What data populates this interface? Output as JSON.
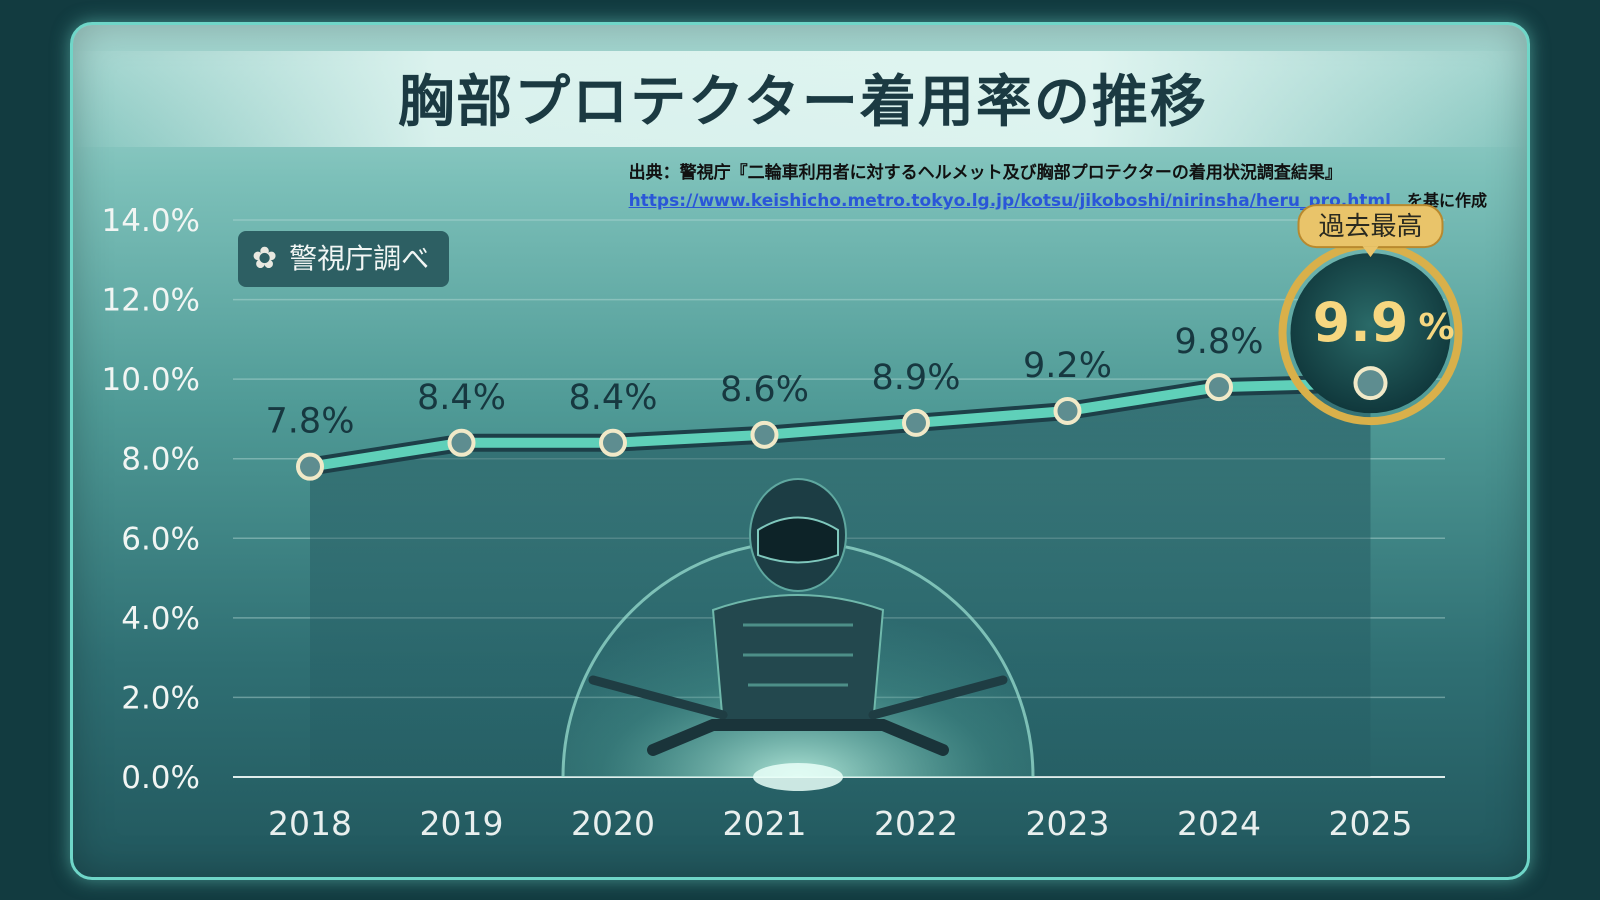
{
  "title": "胸部プロテクター着用率の推移",
  "source": {
    "line1": "出典：警視庁『二輪車利用者に対するヘルメット及び胸部プロテクターの着用状況調査結果』",
    "url": "https://www.keishicho.metro.tokyo.lg.jp/kotsu/jikoboshi/nirinsha/heru_pro.html",
    "basis": "を基に作成"
  },
  "badge": {
    "icon": "sakura-icon",
    "label": "警視庁調べ"
  },
  "record_tag": "過去最高",
  "chart_data": {
    "type": "line",
    "title": "胸部プロテクター着用率の推移",
    "categories": [
      "2018",
      "2019",
      "2020",
      "2021",
      "2022",
      "2023",
      "2024",
      "2025"
    ],
    "values": [
      7.8,
      8.4,
      8.4,
      8.6,
      8.9,
      9.2,
      9.8,
      9.9
    ],
    "value_labels": [
      "7.8%",
      "8.4%",
      "8.4%",
      "8.6%",
      "8.9%",
      "9.2%",
      "9.8%",
      "9.9%"
    ],
    "ylim": [
      0,
      14
    ],
    "yticks": [
      0,
      2,
      4,
      6,
      8,
      10,
      12,
      14
    ],
    "ytick_labels": [
      "0.0%",
      "2.0%",
      "4.0%",
      "6.0%",
      "8.0%",
      "10.0%",
      "12.0%",
      "14.0%"
    ],
    "xlabel": "",
    "ylabel": "",
    "grid": true,
    "highlight": {
      "category": "2025",
      "value_label": "9.9",
      "unit": "%"
    }
  },
  "colors": {
    "line": "#5fd0b9",
    "gold": "#d9b04a",
    "record_value": "#f6d780"
  }
}
